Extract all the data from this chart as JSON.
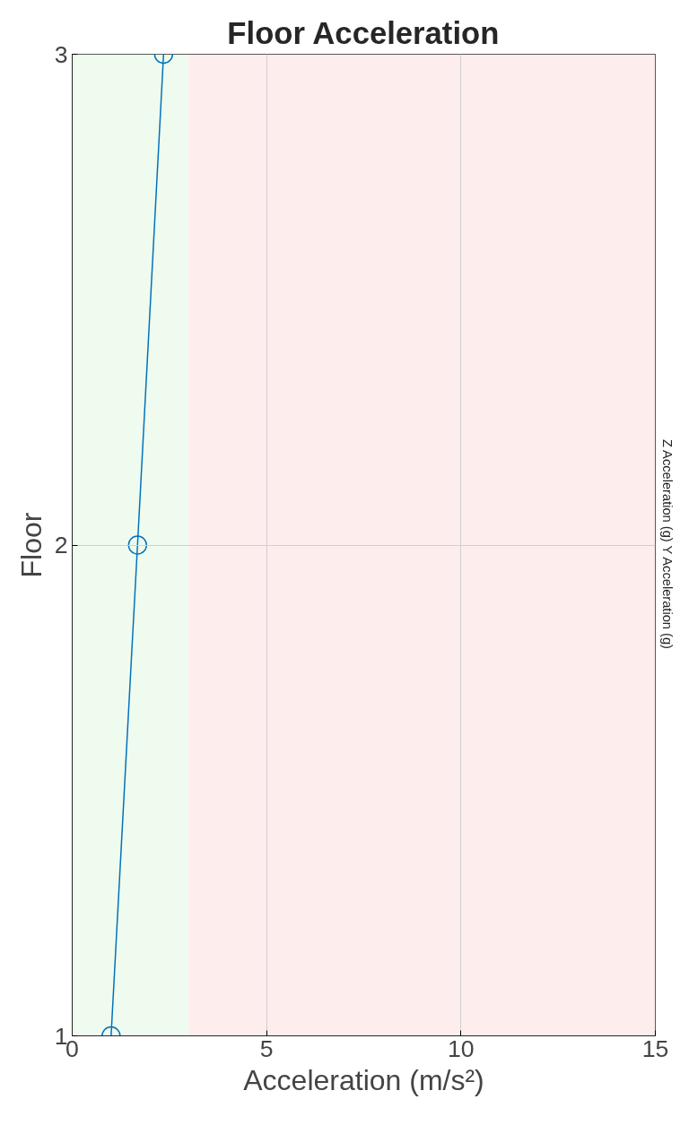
{
  "chart_data": {
    "type": "line",
    "title": "Floor Acceleration",
    "xlabel": "Acceleration (m/s²)",
    "ylabel": "Floor",
    "x": [
      1.0,
      1.68,
      2.35
    ],
    "series": [
      {
        "color": "#0072bd",
        "values": [
          1,
          2,
          3
        ]
      }
    ],
    "xlim": [
      0,
      15
    ],
    "ylim": [
      1,
      3
    ],
    "xticks": [
      0,
      5,
      10,
      15
    ],
    "yticks": [
      1,
      2,
      3
    ],
    "bands": [
      {
        "axis": "x",
        "from": 0,
        "to": 3,
        "color": "#effbee"
      },
      {
        "axis": "x",
        "from": 3,
        "to": 15,
        "color": "#fdeded"
      }
    ],
    "annotations": [
      "Z Acceleration (g) Y Acceleration (g)"
    ],
    "grid": true,
    "marker": "circle",
    "line_style": "solid"
  }
}
